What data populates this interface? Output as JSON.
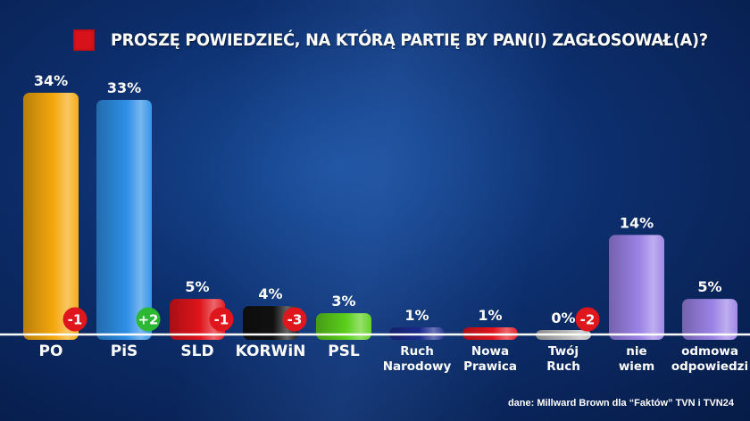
{
  "title": "PROSZĘ POWIEDZIEĆ, NA KTÓRĄ PARTIĘ BY PAN(I) ZAGŁOSOWAŁ(A)?",
  "source": "dane: Millward Brown dla “Faktów” TVN i TVN24",
  "colors": {
    "title_square": "#d8121b",
    "badge_negative": "#e0161d",
    "badge_positive": "#2db833"
  },
  "chart_data": {
    "type": "bar",
    "categories": [
      [
        "PO"
      ],
      [
        "PiS"
      ],
      [
        "SLD"
      ],
      [
        "KORWiN"
      ],
      [
        "PSL"
      ],
      [
        "Ruch",
        "Narodowy"
      ],
      [
        "Nowa",
        "Prawica"
      ],
      [
        "Twój",
        "Ruch"
      ],
      [
        "nie",
        "wiem"
      ],
      [
        "odmowa",
        "odpowiedzi"
      ]
    ],
    "values": [
      34,
      33,
      5,
      4,
      3,
      1,
      1,
      0,
      14,
      5
    ],
    "value_labels": [
      "34%",
      "33%",
      "5%",
      "4%",
      "3%",
      "1%",
      "1%",
      "0%",
      "14%",
      "5%"
    ],
    "changes": [
      "-1",
      "+2",
      "-1",
      "-3",
      null,
      null,
      null,
      "-2",
      null,
      null
    ],
    "colors": [
      "#f5a80d",
      "#2e8fe6",
      "#e0141c",
      "#111111",
      "#5ccf1c",
      "#1b2b8c",
      "#e0141c",
      "#b7b7b7",
      "#9b83e6",
      "#9b83e6"
    ],
    "ylim": [
      0,
      34
    ],
    "grid": false,
    "legend": "none"
  }
}
